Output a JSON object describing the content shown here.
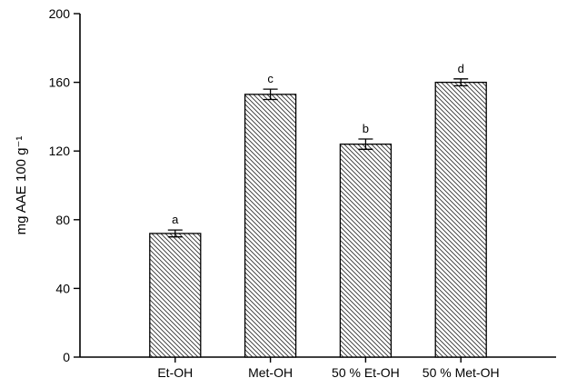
{
  "chart_data": {
    "type": "bar",
    "title": "",
    "xlabel": "",
    "ylabel": "mg AAE 100 g⁻¹",
    "ylim": [
      0,
      200
    ],
    "yticks": [
      0,
      40,
      80,
      120,
      160,
      200
    ],
    "categories": [
      "Et-OH",
      "Met-OH",
      "50 % Et-OH",
      "50 % Met-OH"
    ],
    "values": [
      72,
      153,
      124,
      160
    ],
    "errors": [
      2,
      3,
      3,
      2
    ],
    "bar_labels": [
      "a",
      "c",
      "b",
      "d"
    ],
    "grid": false,
    "legend": false,
    "bar_fill": "diagonal-hatch",
    "bar_edge_color": "#000000",
    "hatch_color": "#303030",
    "background_color": "#ffffff"
  }
}
